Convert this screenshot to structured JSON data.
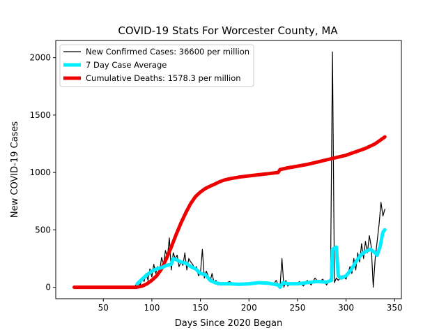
{
  "chart_data": {
    "type": "line",
    "title": "COVID-19 Stats For Worcester County, MA",
    "xlabel": "Days Since 2020 Began",
    "ylabel": "New COVID-19 Cases",
    "xlim": [
      1,
      357
    ],
    "ylim": [
      -100,
      2150
    ],
    "xticks": [
      50,
      100,
      150,
      200,
      250,
      300,
      350
    ],
    "yticks": [
      0,
      500,
      1000,
      1500,
      2000
    ],
    "grid": false,
    "legend_position": "top-left",
    "series": [
      {
        "name": "New Confirmed Cases: 36600 per million",
        "color": "#000000",
        "style": "thin",
        "points": [
          [
            20,
            0
          ],
          [
            82,
            0
          ],
          [
            85,
            40
          ],
          [
            88,
            20
          ],
          [
            90,
            80
          ],
          [
            92,
            50
          ],
          [
            94,
            120
          ],
          [
            96,
            60
          ],
          [
            98,
            160
          ],
          [
            100,
            90
          ],
          [
            102,
            200
          ],
          [
            104,
            120
          ],
          [
            106,
            180
          ],
          [
            108,
            140
          ],
          [
            110,
            260
          ],
          [
            112,
            200
          ],
          [
            114,
            320
          ],
          [
            116,
            260
          ],
          [
            118,
            430
          ],
          [
            120,
            150
          ],
          [
            122,
            300
          ],
          [
            124,
            250
          ],
          [
            126,
            280
          ],
          [
            128,
            180
          ],
          [
            130,
            220
          ],
          [
            132,
            190
          ],
          [
            134,
            300
          ],
          [
            136,
            150
          ],
          [
            138,
            250
          ],
          [
            140,
            220
          ],
          [
            142,
            200
          ],
          [
            144,
            160
          ],
          [
            146,
            180
          ],
          [
            148,
            100
          ],
          [
            150,
            120
          ],
          [
            152,
            330
          ],
          [
            154,
            80
          ],
          [
            156,
            140
          ],
          [
            158,
            100
          ],
          [
            160,
            50
          ],
          [
            162,
            120
          ],
          [
            164,
            40
          ],
          [
            166,
            60
          ],
          [
            168,
            20
          ],
          [
            170,
            40
          ],
          [
            175,
            30
          ],
          [
            180,
            50
          ],
          [
            185,
            20
          ],
          [
            190,
            30
          ],
          [
            195,
            20
          ],
          [
            200,
            40
          ],
          [
            205,
            30
          ],
          [
            210,
            50
          ],
          [
            215,
            30
          ],
          [
            220,
            40
          ],
          [
            225,
            20
          ],
          [
            228,
            60
          ],
          [
            230,
            20
          ],
          [
            232,
            0
          ],
          [
            234,
            250
          ],
          [
            236,
            0
          ],
          [
            238,
            60
          ],
          [
            240,
            10
          ],
          [
            244,
            40
          ],
          [
            248,
            20
          ],
          [
            252,
            50
          ],
          [
            256,
            10
          ],
          [
            260,
            60
          ],
          [
            264,
            20
          ],
          [
            268,
            80
          ],
          [
            272,
            40
          ],
          [
            276,
            70
          ],
          [
            280,
            20
          ],
          [
            284,
            80
          ],
          [
            286,
            2050
          ],
          [
            288,
            40
          ],
          [
            290,
            80
          ],
          [
            292,
            60
          ],
          [
            296,
            100
          ],
          [
            300,
            70
          ],
          [
            304,
            180
          ],
          [
            306,
            120
          ],
          [
            308,
            250
          ],
          [
            310,
            150
          ],
          [
            312,
            300
          ],
          [
            314,
            220
          ],
          [
            316,
            380
          ],
          [
            318,
            250
          ],
          [
            320,
            400
          ],
          [
            322,
            300
          ],
          [
            324,
            450
          ],
          [
            326,
            350
          ],
          [
            328,
            0
          ],
          [
            330,
            250
          ],
          [
            332,
            400
          ],
          [
            334,
            550
          ],
          [
            336,
            740
          ],
          [
            338,
            620
          ],
          [
            340,
            680
          ]
        ]
      },
      {
        "name": "7 Day Case Average",
        "color": "#00eeff",
        "style": "thick",
        "points": [
          [
            85,
            30
          ],
          [
            90,
            70
          ],
          [
            95,
            110
          ],
          [
            100,
            140
          ],
          [
            105,
            160
          ],
          [
            110,
            170
          ],
          [
            115,
            190
          ],
          [
            120,
            200
          ],
          [
            122,
            250
          ],
          [
            125,
            240
          ],
          [
            130,
            220
          ],
          [
            135,
            210
          ],
          [
            140,
            180
          ],
          [
            145,
            160
          ],
          [
            150,
            120
          ],
          [
            155,
            110
          ],
          [
            160,
            60
          ],
          [
            165,
            40
          ],
          [
            170,
            30
          ],
          [
            180,
            30
          ],
          [
            190,
            25
          ],
          [
            200,
            30
          ],
          [
            210,
            40
          ],
          [
            220,
            35
          ],
          [
            230,
            20
          ],
          [
            232,
            0
          ],
          [
            235,
            40
          ],
          [
            240,
            30
          ],
          [
            250,
            30
          ],
          [
            260,
            40
          ],
          [
            270,
            50
          ],
          [
            280,
            45
          ],
          [
            285,
            60
          ],
          [
            286,
            330
          ],
          [
            290,
            350
          ],
          [
            292,
            100
          ],
          [
            295,
            80
          ],
          [
            300,
            100
          ],
          [
            305,
            150
          ],
          [
            310,
            220
          ],
          [
            315,
            280
          ],
          [
            320,
            310
          ],
          [
            325,
            330
          ],
          [
            330,
            300
          ],
          [
            332,
            280
          ],
          [
            335,
            350
          ],
          [
            338,
            480
          ],
          [
            340,
            500
          ]
        ]
      },
      {
        "name": "Cumulative Deaths: 1578.3 per million",
        "color": "#ee0000",
        "style": "thick",
        "points": [
          [
            20,
            0
          ],
          [
            84,
            0
          ],
          [
            90,
            10
          ],
          [
            95,
            30
          ],
          [
            100,
            60
          ],
          [
            105,
            100
          ],
          [
            110,
            160
          ],
          [
            115,
            250
          ],
          [
            120,
            350
          ],
          [
            125,
            460
          ],
          [
            130,
            560
          ],
          [
            135,
            650
          ],
          [
            140,
            730
          ],
          [
            145,
            790
          ],
          [
            150,
            830
          ],
          [
            155,
            860
          ],
          [
            160,
            880
          ],
          [
            165,
            900
          ],
          [
            170,
            920
          ],
          [
            175,
            935
          ],
          [
            180,
            945
          ],
          [
            190,
            960
          ],
          [
            200,
            970
          ],
          [
            210,
            980
          ],
          [
            220,
            990
          ],
          [
            230,
            1000
          ],
          [
            232,
            1025
          ],
          [
            240,
            1040
          ],
          [
            250,
            1055
          ],
          [
            260,
            1070
          ],
          [
            270,
            1090
          ],
          [
            280,
            1110
          ],
          [
            290,
            1130
          ],
          [
            300,
            1150
          ],
          [
            310,
            1180
          ],
          [
            320,
            1210
          ],
          [
            330,
            1250
          ],
          [
            340,
            1310
          ]
        ]
      }
    ]
  }
}
